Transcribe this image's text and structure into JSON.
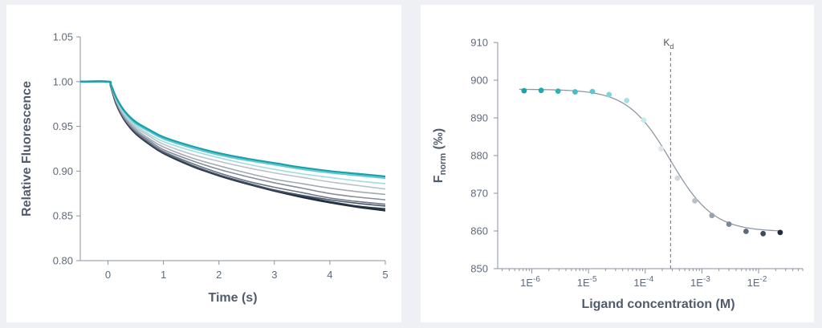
{
  "chart_data": [
    {
      "type": "line",
      "xlabel": "Time (s)",
      "ylabel": "Relative Fluorescence",
      "xlim": [
        -0.5,
        5
      ],
      "ylim": [
        0.8,
        1.05
      ],
      "x_ticks": [
        "0",
        "1",
        "2",
        "3",
        "4",
        "5"
      ],
      "x_tick_values": [
        0,
        1,
        2,
        3,
        4,
        5
      ],
      "y_ticks": [
        "0.80",
        "0.85",
        "0.90",
        "0.95",
        "1.00",
        "1.05"
      ],
      "y_tick_values": [
        0.8,
        0.85,
        0.9,
        0.95,
        1.0,
        1.05
      ],
      "grid": false,
      "x": [
        -0.5,
        0.0,
        0.05,
        0.15,
        0.3,
        0.5,
        0.75,
        1.0,
        1.5,
        2.0,
        2.5,
        3.0,
        3.5,
        4.0,
        4.5,
        5.0
      ],
      "series": [
        {
          "color": "#1f2a3c",
          "values": [
            1.0,
            1.0,
            0.995,
            0.975,
            0.957,
            0.942,
            0.93,
            0.92,
            0.906,
            0.895,
            0.886,
            0.878,
            0.871,
            0.865,
            0.86,
            0.856
          ]
        },
        {
          "color": "#2c3a4e",
          "values": [
            1.0,
            1.0,
            0.995,
            0.975,
            0.957,
            0.942,
            0.93,
            0.92,
            0.906,
            0.895,
            0.886,
            0.878,
            0.872,
            0.866,
            0.861,
            0.858
          ]
        },
        {
          "color": "#49566a",
          "values": [
            1.0,
            1.0,
            0.995,
            0.976,
            0.958,
            0.943,
            0.931,
            0.921,
            0.907,
            0.896,
            0.887,
            0.879,
            0.873,
            0.868,
            0.864,
            0.861
          ]
        },
        {
          "color": "#6b7585",
          "values": [
            1.0,
            1.0,
            0.995,
            0.976,
            0.958,
            0.944,
            0.932,
            0.922,
            0.909,
            0.898,
            0.889,
            0.882,
            0.876,
            0.87,
            0.866,
            0.863
          ]
        },
        {
          "color": "#858e9b",
          "values": [
            1.0,
            1.0,
            0.996,
            0.977,
            0.959,
            0.945,
            0.934,
            0.924,
            0.912,
            0.902,
            0.894,
            0.887,
            0.881,
            0.875,
            0.871,
            0.868
          ]
        },
        {
          "color": "#a3aab4",
          "values": [
            1.0,
            1.0,
            0.996,
            0.978,
            0.961,
            0.947,
            0.936,
            0.927,
            0.915,
            0.906,
            0.898,
            0.891,
            0.886,
            0.881,
            0.877,
            0.874
          ]
        },
        {
          "color": "#bcc2ca",
          "values": [
            1.0,
            1.0,
            0.996,
            0.979,
            0.962,
            0.949,
            0.939,
            0.93,
            0.919,
            0.911,
            0.904,
            0.898,
            0.893,
            0.888,
            0.884,
            0.88
          ]
        },
        {
          "color": "#9fdde2",
          "values": [
            1.0,
            1.0,
            0.996,
            0.98,
            0.964,
            0.951,
            0.941,
            0.933,
            0.923,
            0.915,
            0.908,
            0.902,
            0.897,
            0.893,
            0.889,
            0.886
          ]
        },
        {
          "color": "#5bc4cc",
          "values": [
            1.0,
            1.0,
            0.997,
            0.981,
            0.966,
            0.953,
            0.944,
            0.936,
            0.926,
            0.918,
            0.912,
            0.907,
            0.902,
            0.898,
            0.895,
            0.892
          ]
        },
        {
          "color": "#17a2ad",
          "values": [
            1.0,
            1.0,
            0.997,
            0.982,
            0.967,
            0.955,
            0.946,
            0.938,
            0.928,
            0.92,
            0.914,
            0.909,
            0.904,
            0.9,
            0.897,
            0.894
          ]
        }
      ]
    },
    {
      "type": "scatter",
      "xlabel": "Ligand concentration (M)",
      "ylabel_main": "F",
      "ylabel_sub": "norm",
      "ylabel_suffix": " (‰)",
      "x_scale": "log",
      "xlim": [
        2.5e-07,
        0.06
      ],
      "ylim": [
        850,
        910
      ],
      "x_ticks": [
        {
          "base": "1E",
          "exp": "-6",
          "value": 1e-06
        },
        {
          "base": "1E",
          "exp": "-5",
          "value": 1e-05
        },
        {
          "base": "1E",
          "exp": "-4",
          "value": 0.0001
        },
        {
          "base": "1E",
          "exp": "-3",
          "value": 0.001
        },
        {
          "base": "1E",
          "exp": "-2",
          "value": 0.01
        }
      ],
      "y_ticks": [
        "850",
        "860",
        "870",
        "880",
        "890",
        "900",
        "910"
      ],
      "y_tick_values": [
        850,
        860,
        870,
        880,
        890,
        900,
        910
      ],
      "grid": false,
      "kd_label_main": "K",
      "kd_label_sub": "d",
      "kd_value": 0.00028,
      "points": [
        {
          "x": 7.3e-07,
          "y": 897.2,
          "color": "#17a2ad"
        },
        {
          "x": 1.46e-06,
          "y": 897.3,
          "color": "#1ea8b2"
        },
        {
          "x": 2.9e-06,
          "y": 897.1,
          "color": "#2fb1ba"
        },
        {
          "x": 5.8e-06,
          "y": 896.9,
          "color": "#47bcc4"
        },
        {
          "x": 1.17e-05,
          "y": 897.0,
          "color": "#5fc5cc"
        },
        {
          "x": 2.3e-05,
          "y": 896.2,
          "color": "#82d2d8"
        },
        {
          "x": 4.7e-05,
          "y": 894.6,
          "color": "#a3dfe3"
        },
        {
          "x": 9.4e-05,
          "y": 889.4,
          "color": "#c6ebee"
        },
        {
          "x": 0.00019,
          "y": 881.8,
          "color": "#e2e6ea"
        },
        {
          "x": 0.00037,
          "y": 874.0,
          "color": "#d2d7dd"
        },
        {
          "x": 0.00075,
          "y": 868.0,
          "color": "#b7bec7"
        },
        {
          "x": 0.0015,
          "y": 864.1,
          "color": "#9aa2ad"
        },
        {
          "x": 0.003,
          "y": 861.8,
          "color": "#7e8794"
        },
        {
          "x": 0.006,
          "y": 859.9,
          "color": "#5f6979"
        },
        {
          "x": 0.012,
          "y": 859.3,
          "color": "#3f4a5c"
        },
        {
          "x": 0.024,
          "y": 859.6,
          "color": "#1f2a3c"
        }
      ],
      "fit": {
        "top": 897.6,
        "bottom": 859.8,
        "kd": 0.00028,
        "hill": 1.15,
        "color": "#8f98a4"
      }
    }
  ]
}
